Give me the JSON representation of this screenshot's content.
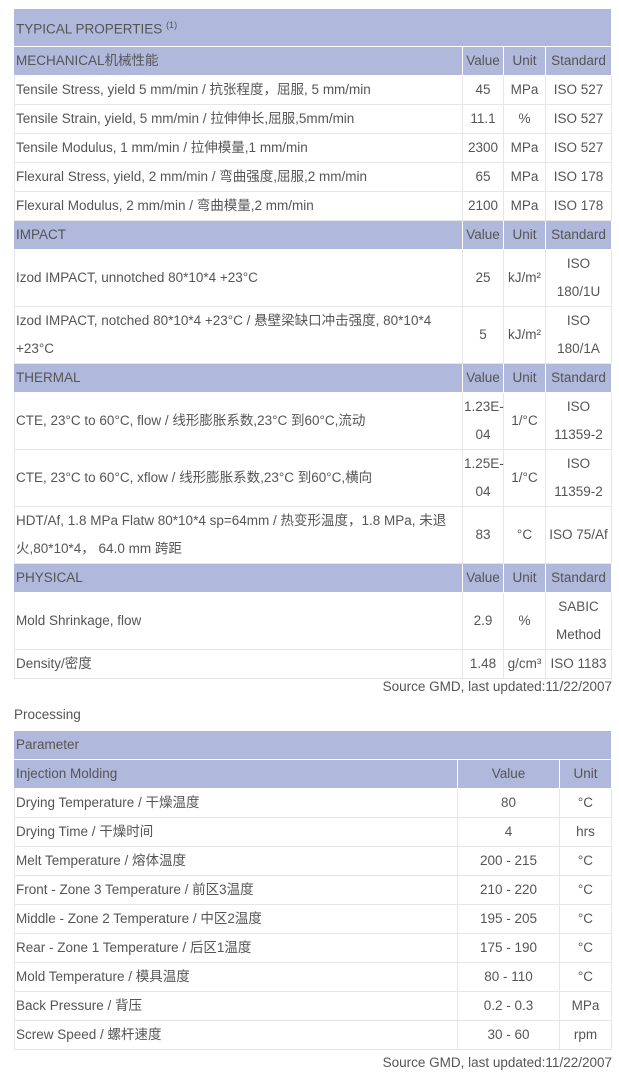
{
  "properties": {
    "title": "TYPICAL PROPERTIES",
    "title_note": "(1)",
    "sections": [
      {
        "name": "MECHANICAL机械性能",
        "value_header": "Value",
        "unit_header": "Unit",
        "standard_header": "Standard",
        "rows": [
          {
            "property": "Tensile Stress, yield 5 mm/min / 抗张程度，屈服, 5 mm/min",
            "value": "45",
            "unit": "MPa",
            "standard": "ISO 527"
          },
          {
            "property": "Tensile Strain, yield, 5 mm/min / 拉伸伸长,屈服,5mm/min",
            "value": "11.1",
            "unit": "%",
            "standard": "ISO 527"
          },
          {
            "property": "Tensile Modulus, 1 mm/min / 拉伸模量,1 mm/min",
            "value": "2300",
            "unit": "MPa",
            "standard": "ISO 527"
          },
          {
            "property": "Flexural Stress, yield, 2 mm/min / 弯曲强度,屈服,2 mm/min",
            "value": "65",
            "unit": "MPa",
            "standard": "ISO 178"
          },
          {
            "property": "Flexural Modulus, 2 mm/min / 弯曲模量,2 mm/min",
            "value": "2100",
            "unit": "MPa",
            "standard": "ISO 178"
          }
        ]
      },
      {
        "name": "IMPACT",
        "value_header": "Value",
        "unit_header": "Unit",
        "standard_header": "Standard",
        "rows": [
          {
            "property": "Izod IMPACT, unnotched 80*10*4 +23°C",
            "value": "25",
            "unit": "kJ/m²",
            "standard": "ISO 180/1U"
          },
          {
            "property": "Izod IMPACT, notched 80*10*4 +23°C / 悬壁梁缺口冲击强度, 80*10*4 +23°C",
            "value": "5",
            "unit": "kJ/m²",
            "standard": "ISO 180/1A"
          }
        ]
      },
      {
        "name": "THERMAL",
        "value_header": "Value",
        "unit_header": "Unit",
        "standard_header": "Standard",
        "rows": [
          {
            "property": "CTE, 23°C to 60°C, flow / 线形膨胀系数,23°C 到60°C,流动",
            "value": "1.23E-04",
            "unit": "1/°C",
            "standard": "ISO 11359-2"
          },
          {
            "property": "CTE, 23°C to 60°C, xflow / 线形膨胀系数,23°C 到60°C,横向",
            "value": "1.25E-04",
            "unit": "1/°C",
            "standard": "ISO 11359-2"
          },
          {
            "property": "HDT/Af, 1.8 MPa Flatw 80*10*4 sp=64mm / 热变形温度，1.8 MPa, 未退火,80*10*4， 64.0 mm 跨距",
            "value": "83",
            "unit": "°C",
            "standard": "ISO 75/Af"
          }
        ]
      },
      {
        "name": "PHYSICAL",
        "value_header": "Value",
        "unit_header": "Unit",
        "standard_header": "Standard",
        "rows": [
          {
            "property": "Mold Shrinkage, flow",
            "value": "2.9",
            "unit": "%",
            "standard": "SABIC Method"
          },
          {
            "property": "Density/密度",
            "value": "1.48",
            "unit": "g/cm³",
            "standard": "ISO 1183"
          }
        ]
      }
    ],
    "source": "Source GMD, last updated:11/22/2007"
  },
  "processing": {
    "title": "Processing",
    "header": "Parameter",
    "section": "Injection Molding",
    "value_header": "Value",
    "unit_header": "Unit",
    "rows": [
      {
        "parameter": "Drying Temperature / 干燥温度",
        "value": "80",
        "unit": "°C"
      },
      {
        "parameter": "Drying Time / 干燥时间",
        "value": "4",
        "unit": "hrs"
      },
      {
        "parameter": "Melt Temperature / 熔体温度",
        "value": "200 - 215",
        "unit": "°C"
      },
      {
        "parameter": "Front - Zone 3 Temperature / 前区3温度",
        "value": "210 - 220",
        "unit": "°C"
      },
      {
        "parameter": "Middle - Zone 2 Temperature / 中区2温度",
        "value": "195 - 205",
        "unit": "°C"
      },
      {
        "parameter": "Rear - Zone 1 Temperature / 后区1温度",
        "value": "175 - 190",
        "unit": "°C"
      },
      {
        "parameter": "Mold Temperature / 模具温度",
        "value": "80 - 110",
        "unit": "°C"
      },
      {
        "parameter": "Back Pressure / 背压",
        "value": "0.2 - 0.3",
        "unit": "MPa"
      },
      {
        "parameter": "Screw Speed / 螺杆速度",
        "value": "30 - 60",
        "unit": "rpm"
      }
    ],
    "source": "Source GMD, last updated:11/22/2007"
  },
  "colors": {
    "header_bg": "#b0b9db",
    "text": "#555555"
  }
}
